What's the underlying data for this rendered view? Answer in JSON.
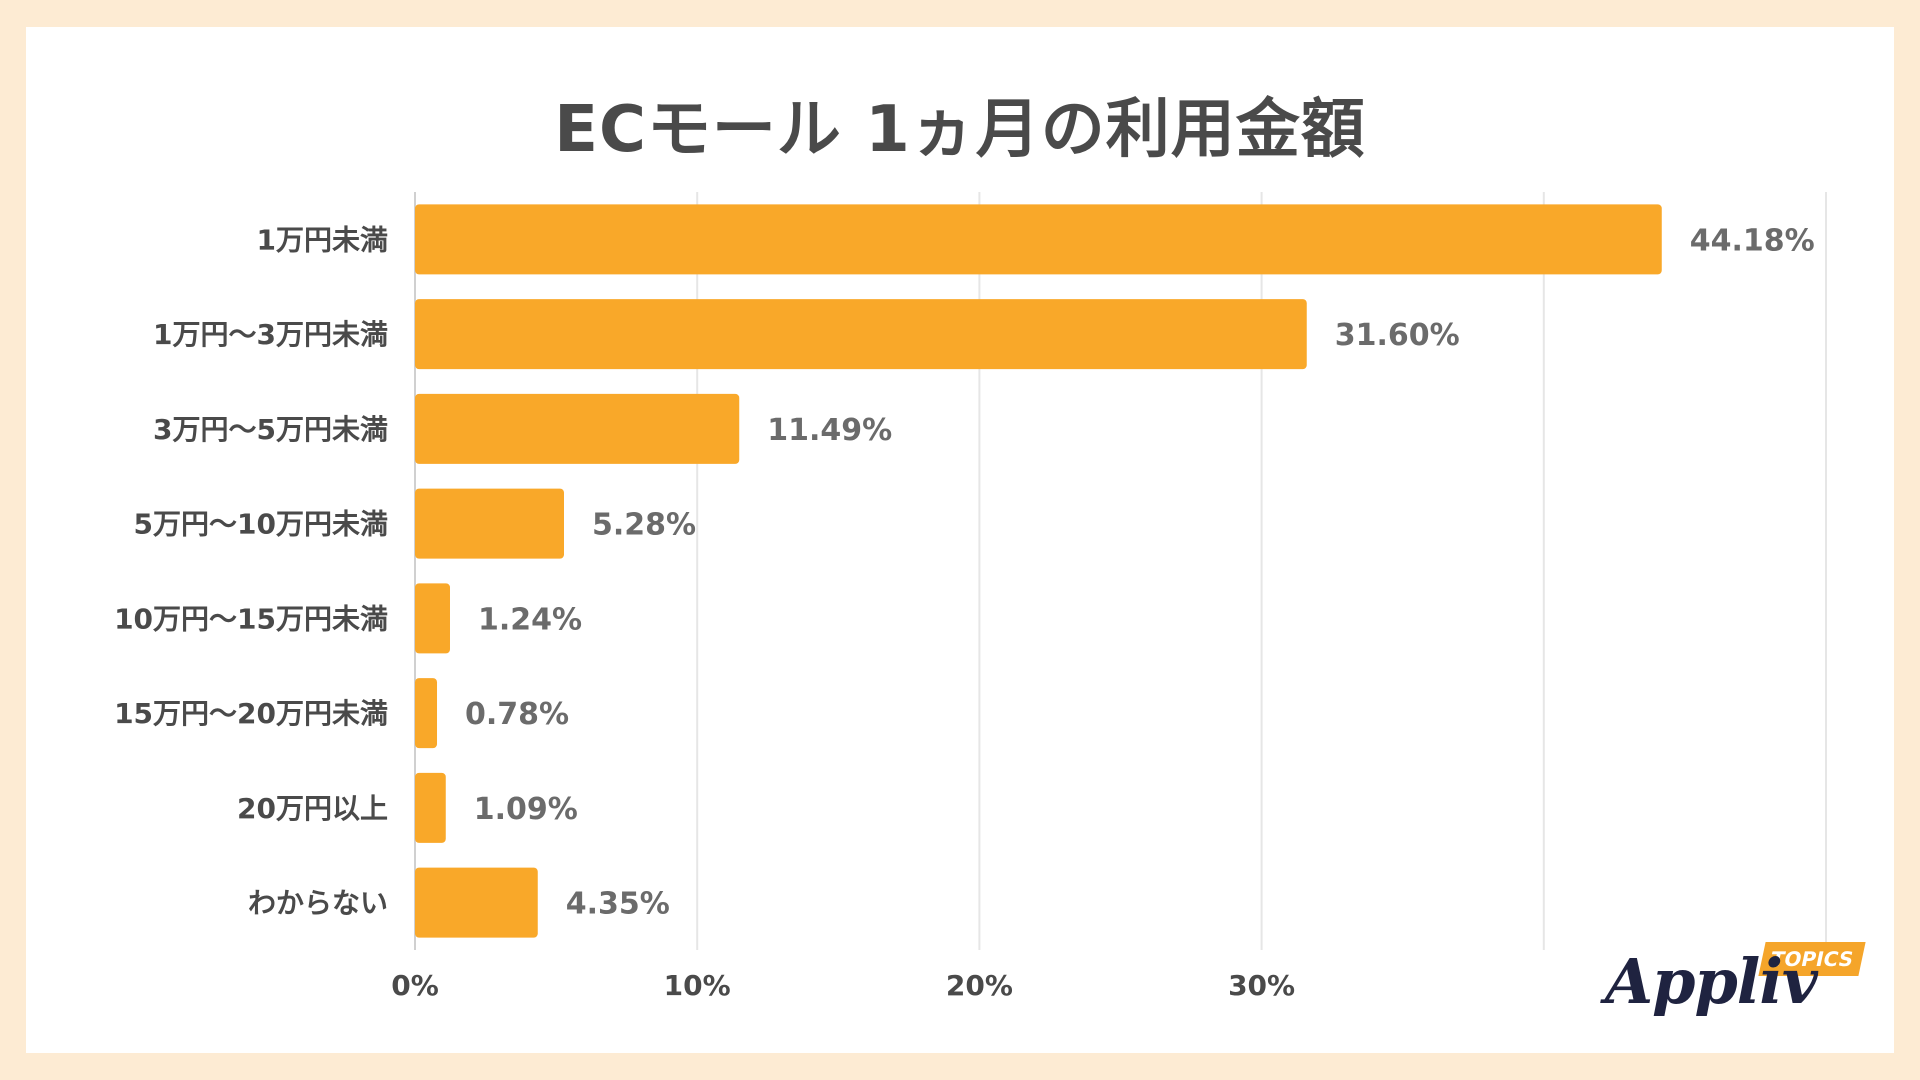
{
  "chart_data": {
    "type": "bar",
    "orientation": "horizontal",
    "title": "ECモール 1ヵ月の利用金額",
    "categories": [
      "1万円未満",
      "1万円～3万円未満",
      "3万円～5万円未満",
      "5万円～10万円未満",
      "10万円～15万円未満",
      "15万円～20万円未満",
      "20万円以上",
      "わからない"
    ],
    "values": [
      44.18,
      31.6,
      11.49,
      5.28,
      1.24,
      0.78,
      1.09,
      4.35
    ],
    "value_labels": [
      "44.18%",
      "31.60%",
      "11.49%",
      "5.28%",
      "1.24%",
      "0.78%",
      "1.09%",
      "4.35%"
    ],
    "x_ticks": [
      0,
      10,
      20,
      30
    ],
    "x_tick_labels": [
      "0%",
      "10%",
      "20%",
      "30%"
    ],
    "xlim": [
      0,
      50
    ],
    "grid": true,
    "bar_color": "#f9a829",
    "grid_color": "#e6e6e6"
  },
  "branding": {
    "logo_text": "Appliv",
    "logo_tag": "TOPICS",
    "tag_color": "#f5a52a"
  }
}
